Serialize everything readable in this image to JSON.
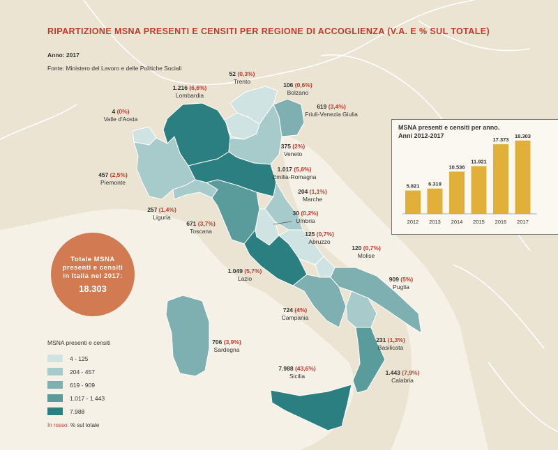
{
  "title": "RIPARTIZIONE MSNA PRESENTI E CENSITI PER REGIONE DI ACCOGLIENZA (V.A. E % SUL TOTALE)",
  "year": "Anno: 2017",
  "source": "Fonte: Ministero del Lavoro e delle Politiche Sociali",
  "colors": {
    "bg": "#f6f1e6",
    "land": "#ece4d3",
    "sea": "#f6f1e6",
    "accent": "#c0392b",
    "class1": "#cfe3e3",
    "class2": "#a7cacb",
    "class3": "#7fb0b1",
    "class4": "#5a9c9c",
    "class5": "#2b7f80",
    "bar": "#e0b03a",
    "total_bubble": "#d27a52"
  },
  "regions": [
    {
      "name": "Lombardia",
      "value": "1.216",
      "pct": "(6,6%)"
    },
    {
      "name": "Trento",
      "value": "52",
      "pct": "(0,3%)"
    },
    {
      "name": "Bolzano",
      "value": "106",
      "pct": "(0,6%)"
    },
    {
      "name": "Friuli-Venezia Giulia",
      "value": "619",
      "pct": "(3,4%)"
    },
    {
      "name": "Valle d'Aosta",
      "value": "4",
      "pct": "(0%)"
    },
    {
      "name": "Veneto",
      "value": "375",
      "pct": "(2%)"
    },
    {
      "name": "Piemonte",
      "value": "457",
      "pct": "(2,5%)"
    },
    {
      "name": "Emilia-Romagna",
      "value": "1.017",
      "pct": "(5,6%)"
    },
    {
      "name": "Liguria",
      "value": "257",
      "pct": "(1,4%)"
    },
    {
      "name": "Marche",
      "value": "204",
      "pct": "(1,1%)"
    },
    {
      "name": "Toscana",
      "value": "671",
      "pct": "(3,7%)"
    },
    {
      "name": "Umbria",
      "value": "30",
      "pct": "(0,2%)"
    },
    {
      "name": "Abruzzo",
      "value": "125",
      "pct": "(0,7%)"
    },
    {
      "name": "Molise",
      "value": "120",
      "pct": "(0,7%)"
    },
    {
      "name": "Lazio",
      "value": "1.049",
      "pct": "(5,7%)"
    },
    {
      "name": "Puglia",
      "value": "909",
      "pct": "(5%)"
    },
    {
      "name": "Campania",
      "value": "724",
      "pct": "(4%)"
    },
    {
      "name": "Sardegna",
      "value": "706",
      "pct": "(3,9%)"
    },
    {
      "name": "Basilicata",
      "value": "231",
      "pct": "(1,3%)"
    },
    {
      "name": "Sicilia",
      "value": "7.988",
      "pct": "(43,6%)"
    },
    {
      "name": "Calabria",
      "value": "1.443",
      "pct": "(7,9%)"
    }
  ],
  "total": {
    "line1": "Totale MSNA",
    "line2": "presenti e censiti",
    "line3": "in Italia nel 2017:",
    "value": "18.303"
  },
  "legend": {
    "title": "MSNA presenti e censiti",
    "items": [
      "4 - 125",
      "204 - 457",
      "619 - 909",
      "1.017 - 1.443",
      "7.988"
    ],
    "note_red": "In rosso:",
    "note_rest": "% sul totale"
  },
  "chart_data": {
    "type": "bar",
    "title": "MSNA presenti e censiti per anno. Anni 2012-2017",
    "title_line1": "MSNA presenti e censiti per anno.",
    "title_line2": "Anni 2012-2017",
    "categories": [
      "2012",
      "2013",
      "2014",
      "2015",
      "2016",
      "2017"
    ],
    "values": [
      5821,
      6319,
      10536,
      11921,
      17373,
      18303
    ],
    "value_labels": [
      "5.821",
      "6.319",
      "10.536",
      "11.921",
      "17.373",
      "18.303"
    ],
    "ylim": [
      0,
      20000
    ],
    "grid": false
  }
}
